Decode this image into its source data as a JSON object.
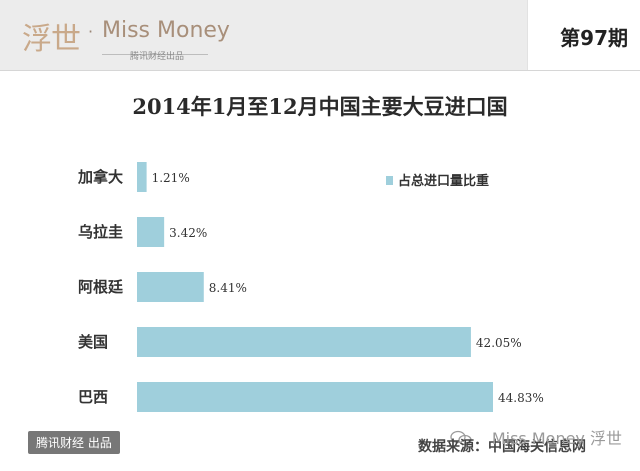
{
  "header": {
    "logo_cn": "浮世",
    "logo_dot": "·",
    "logo_en": "Miss Money",
    "logo_sub": "腾讯财经出品",
    "issue": "第97期"
  },
  "colors": {
    "bar": "#9fcfdc",
    "header_bg": "#ececec"
  },
  "chart_data": {
    "type": "bar",
    "orientation": "horizontal",
    "title": "2014年1月至12月中国主要大豆进口国",
    "categories": [
      "加拿大",
      "乌拉圭",
      "阿根廷",
      "美国",
      "巴西"
    ],
    "series": [
      {
        "name": "占总进口量比重",
        "values": [
          1.21,
          3.42,
          8.41,
          42.05,
          44.83
        ]
      }
    ],
    "value_labels": [
      "1.21%",
      "3.42%",
      "8.41%",
      "42.05%",
      "44.83%"
    ],
    "unit": "%",
    "xlim": [
      0,
      44.83
    ],
    "legend_position": "top-right",
    "grid": false
  },
  "footer": {
    "source": "数据来源：中国海关信息网",
    "badge": "腾讯财经 出品",
    "watermark": "Miss Money 浮世"
  }
}
